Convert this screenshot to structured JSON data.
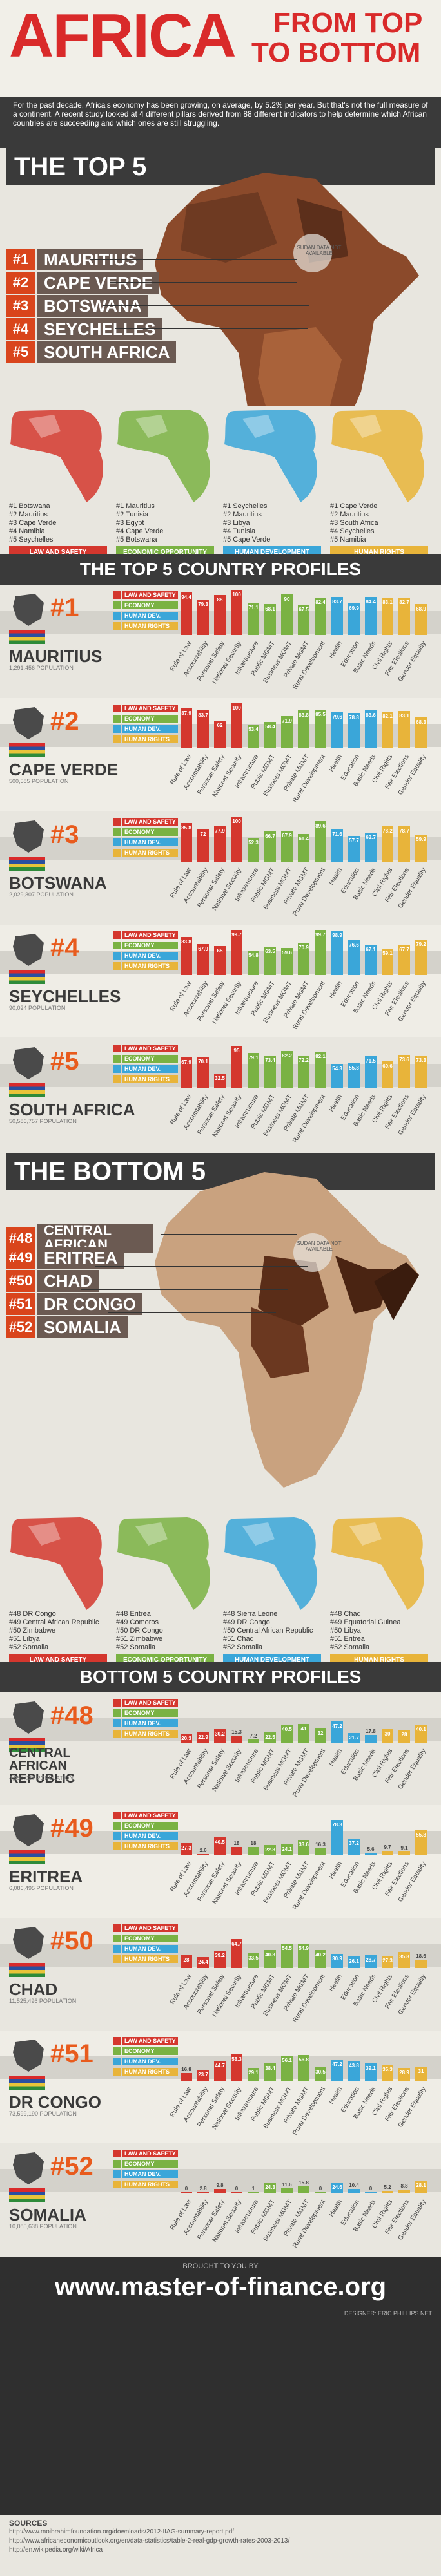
{
  "header": {
    "title_main": "AFRICA",
    "title_line1": "FROM TOP",
    "title_line2": "TO BOTTOM",
    "intro": "For the past decade, Africa's economy has been growing, on average, by 5.2% per year. But that's not the full measure of a continent. A recent study looked at 4 different pillars derived from 88 different indicators to help determine which African countries are succeeding and which ones are still struggling."
  },
  "colors": {
    "red": "#d92a2a",
    "law": "#d4372e",
    "economy": "#7ab243",
    "human_dev": "#3aa6d9",
    "human_rights": "#e8b43a",
    "dark": "#3a3a3a",
    "orange": "#e85b1d"
  },
  "top5": {
    "title": "THE TOP 5",
    "no_data": "SUDAN DATA NOT AVAILABLE",
    "ranks": [
      {
        "rank": "#1",
        "name": "MAURITIUS"
      },
      {
        "rank": "#2",
        "name": "CAPE VERDE"
      },
      {
        "rank": "#3",
        "name": "BOTSWANA"
      },
      {
        "rank": "#4",
        "name": "SEYCHELLES"
      },
      {
        "rank": "#5",
        "name": "SOUTH AFRICA"
      }
    ],
    "pillars": [
      {
        "label": "LAW AND SAFETY",
        "lines": [
          "#1 Botswana",
          "#2 Mauritius",
          "#3 Cape Verde",
          "#4 Namibia",
          "#5 Seychelles"
        ],
        "icon": "padlock-icon"
      },
      {
        "label": "ECONOMIC OPPORTUNITY",
        "lines": [
          "#1 Mauritius",
          "#2 Tunisia",
          "#3 Egypt",
          "#4 Cape Verde",
          "#5 Botswana"
        ],
        "icon": "dollar-icon"
      },
      {
        "label": "HUMAN DEVELOPMENT",
        "lines": [
          "#1 Seychelles",
          "#2 Mauritius",
          "#3 Libya",
          "#4 Tunisia",
          "#5 Cape Verde"
        ],
        "icon": "caduceus-icon"
      },
      {
        "label": "HUMAN RIGHTS",
        "lines": [
          "#1 Cape Verde",
          "#2 Mauritius",
          "#3 South Africa",
          "#4 Seychelles",
          "#5 Namibia"
        ],
        "icon": "equals-icon"
      }
    ]
  },
  "top_profiles_title": "THE TOP 5 COUNTRY PROFILES",
  "legend": [
    "LAW AND SAFETY",
    "ECONOMY",
    "HUMAN DEV.",
    "HUMAN RIGHTS"
  ],
  "xlabels": [
    "Rule of Law",
    "Accountability",
    "Personal Safety",
    "National Security",
    "Infrastructure",
    "Public MGMT",
    "Business MGMT",
    "Private MGMT",
    "Rural Development",
    "Health",
    "Education",
    "Basic Needs",
    "Civil Rights",
    "Fair Elections",
    "Gender Equality"
  ],
  "pop_label": "POPULATION",
  "top_profiles": [
    {
      "rank": "#1",
      "name": "MAURITIUS",
      "pop": "1,291,456",
      "values": [
        94.4,
        79.3,
        88.0,
        100,
        71.1,
        68.1,
        90.0,
        67.5,
        82.4,
        83.7,
        69.9,
        84.4,
        83.1,
        82.7,
        68.9
      ]
    },
    {
      "rank": "#2",
      "name": "CAPE VERDE",
      "pop": "500,585",
      "values": [
        87.9,
        83.7,
        62.0,
        100,
        53.4,
        58.4,
        71.9,
        83.8,
        85.5,
        79.6,
        78.8,
        83.6,
        82.1,
        83.1,
        68.3
      ]
    },
    {
      "rank": "#3",
      "name": "BOTSWANA",
      "pop": "2,029,307",
      "values": [
        85.8,
        72.0,
        77.9,
        100,
        52.3,
        66.7,
        67.9,
        61.4,
        89.6,
        71.6,
        57.7,
        63.7,
        78.2,
        78.7,
        59.9
      ]
    },
    {
      "rank": "#4",
      "name": "SEYCHELLES",
      "pop": "90,024",
      "values": [
        83.8,
        67.9,
        65.0,
        99.7,
        54.8,
        63.5,
        59.6,
        70.9,
        99.7,
        98.9,
        76.6,
        67.1,
        59.1,
        67.7,
        79.2
      ]
    },
    {
      "rank": "#5",
      "name": "SOUTH AFRICA",
      "pop": "50,586,757",
      "values": [
        67.9,
        70.1,
        32.5,
        95.0,
        79.1,
        73.4,
        82.2,
        72.2,
        82.1,
        54.3,
        55.8,
        71.5,
        60.6,
        73.6,
        73.3
      ]
    }
  ],
  "bottom5": {
    "title": "THE BOTTOM 5",
    "no_data": "SUDAN DATA NOT AVAILABLE",
    "ranks": [
      {
        "rank": "#48",
        "name": "CENTRAL AFRICAN REPUBLIC"
      },
      {
        "rank": "#49",
        "name": "ERITREA"
      },
      {
        "rank": "#50",
        "name": "CHAD"
      },
      {
        "rank": "#51",
        "name": "DR CONGO"
      },
      {
        "rank": "#52",
        "name": "SOMALIA"
      }
    ],
    "pillars": [
      {
        "label": "LAW AND SAFETY",
        "lines": [
          "#48 DR Congo",
          "#49 Central African Republic",
          "#50 Zimbabwe",
          "#51 Libya",
          "#52 Somalia"
        ],
        "icon": "padlock-icon"
      },
      {
        "label": "ECONOMIC OPPORTUNITY",
        "lines": [
          "#48 Eritrea",
          "#49 Comoros",
          "#50 DR Congo",
          "#51 Zimbabwe",
          "#52 Somalia"
        ],
        "icon": "dollar-icon"
      },
      {
        "label": "HUMAN DEVELOPMENT",
        "lines": [
          "#48 Sierra Leone",
          "#49 DR Congo",
          "#50 Central African Republic",
          "#51 Chad",
          "#52 Somalia"
        ],
        "icon": "caduceus-icon"
      },
      {
        "label": "HUMAN RIGHTS",
        "lines": [
          "#48 Chad",
          "#49 Equatorial Guinea",
          "#50 Libya",
          "#51 Eritrea",
          "#52 Somalia"
        ],
        "icon": "equals-icon"
      }
    ]
  },
  "bottom_profiles_title": "BOTTOM 5 COUNTRY PROFILES",
  "bottom_profiles": [
    {
      "rank": "#48",
      "name": "CENTRAL AFRICAN REPUBLIC",
      "pop": "4,950,027",
      "values": [
        20.3,
        22.9,
        30.2,
        15.3,
        7.2,
        22.5,
        40.5,
        41.0,
        32.0,
        47.2,
        21.7,
        17.8,
        30.0,
        28.0,
        40.1
      ]
    },
    {
      "rank": "#49",
      "name": "ERITREA",
      "pop": "6,086,495",
      "values": [
        27.3,
        2.6,
        40.5,
        18.0,
        18.0,
        22.8,
        24.1,
        33.6,
        16.3,
        78.3,
        37.2,
        5.6,
        9.7,
        9.1,
        55.8
      ]
    },
    {
      "rank": "#50",
      "name": "CHAD",
      "pop": "11,525,496",
      "values": [
        28.0,
        24.4,
        39.2,
        64.7,
        33.5,
        40.3,
        54.5,
        54.9,
        40.2,
        30.9,
        26.1,
        28.7,
        27.3,
        35.8,
        18.6
      ]
    },
    {
      "rank": "#51",
      "name": "DR CONGO",
      "pop": "73,599,190",
      "values": [
        16.8,
        23.7,
        44.7,
        58.3,
        29.1,
        38.4,
        56.1,
        56.8,
        30.5,
        47.2,
        43.8,
        39.1,
        35.3,
        28.9,
        31.0
      ]
    },
    {
      "rank": "#52",
      "name": "SOMALIA",
      "pop": "10,085,638",
      "values": [
        0,
        2.8,
        9.8,
        0,
        1,
        24.3,
        11.6,
        15.8,
        0,
        24.6,
        10.4,
        0,
        5.2,
        8.8,
        28.1
      ]
    }
  ],
  "footer": {
    "brought": "BROUGHT TO YOU BY",
    "site": "www.master-of-finance.org",
    "designer": "DESIGNER: ERIC PHILLIPS.NET",
    "sources_title": "SOURCES",
    "sources": [
      "http://www.moibrahimfoundation.org/downloads/2012-IIAG-summary-report.pdf",
      "http://www.africaneconomicoutlook.org/en/data-statistics/table-2-real-gdp-growth-rates-2003-2013/",
      "http://en.wikipedia.org/wiki/Africa"
    ]
  }
}
